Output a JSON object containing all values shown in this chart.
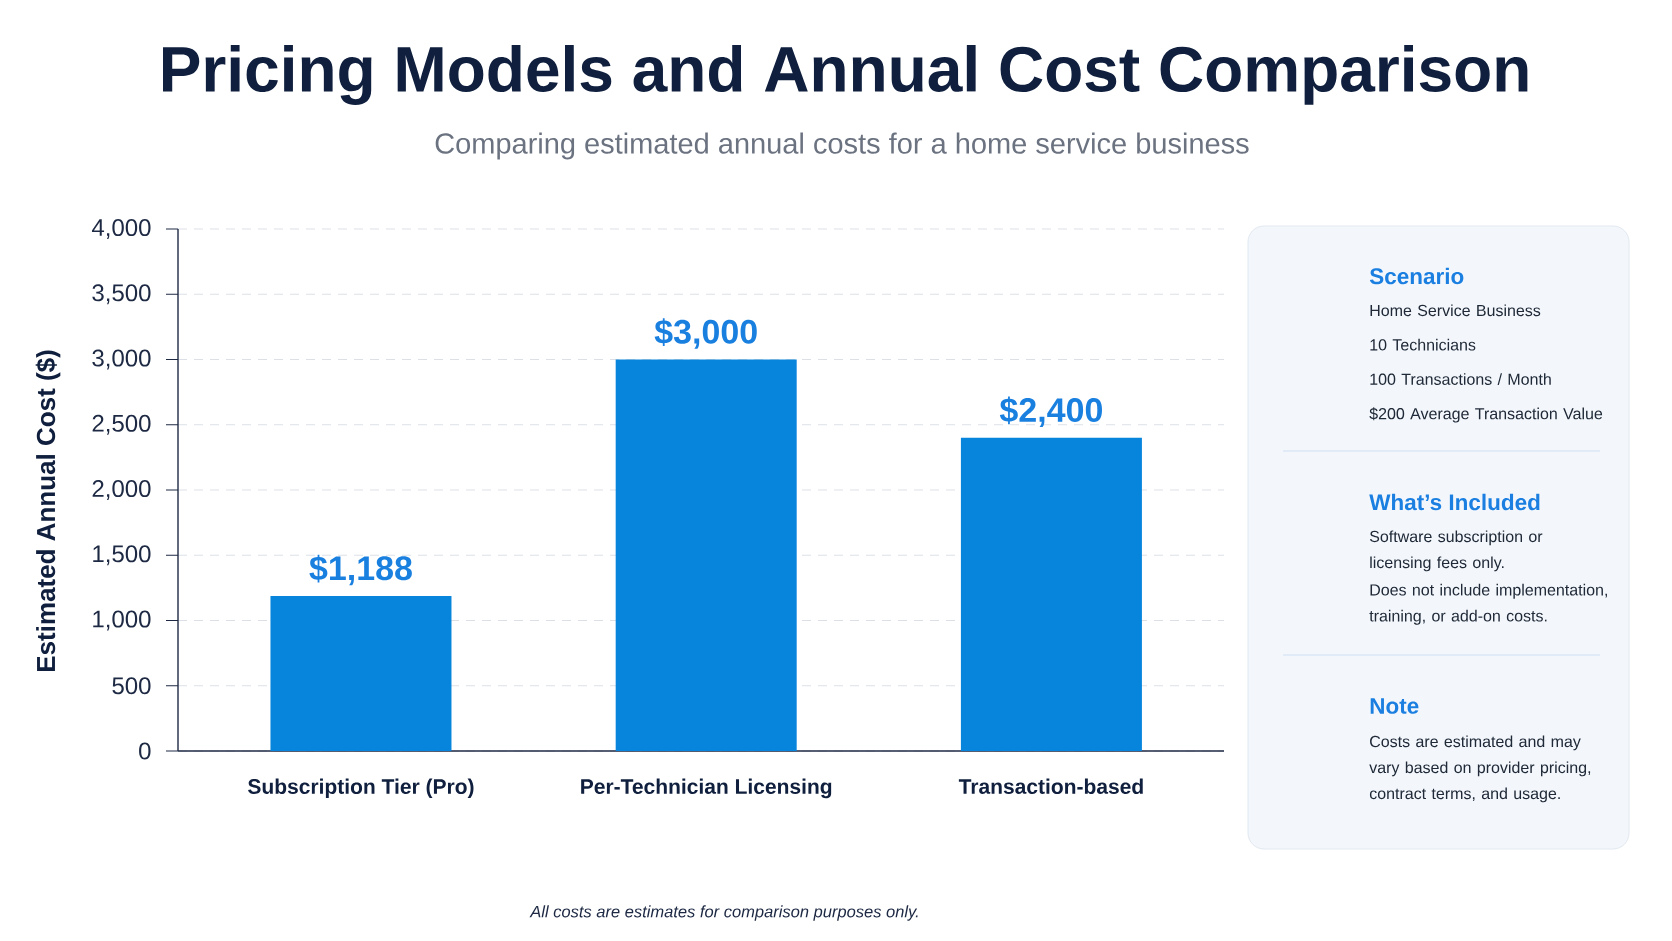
{
  "chart_data": [
    {
      "type": "bar",
      "title": "Pricing Models and Annual Cost Comparison",
      "subtitle": "Comparing estimated annual costs for a home service business",
      "ylabel": "Estimated Annual Cost ($)",
      "categories": [
        "Subscription Tier (Pro)",
        "Per-Technician Licensing",
        "Transaction-based"
      ],
      "values": [
        1188,
        3000,
        2400
      ],
      "value_labels": [
        "$1,188",
        "$3,000",
        "$2,400"
      ],
      "color": "#0784dc",
      "ylim": [
        0,
        4000
      ],
      "yticks": [
        0,
        500,
        {
          "value": 1000,
          "label": "1,000"
        },
        {
          "value": 1500,
          "label": "1,500"
        },
        {
          "value": 2000,
          "label": "2,000"
        },
        {
          "value": 2500,
          "label": "2,500"
        },
        {
          "value": 3000,
          "label": "3,000"
        },
        {
          "value": 3500,
          "label": "3,500"
        },
        {
          "value": 4000,
          "label": "4,000"
        }
      ],
      "grid": "y",
      "annotations": [
        "All costs are estimates for comparison purposes only."
      ]
    },
    {
      "type": "other",
      "title": "Scenario",
      "annotations": [
        "Home Service Business",
        "10 Technicians",
        "100 Transactions / Month",
        "$200 Average Transaction Value"
      ]
    },
    {
      "type": "other",
      "title": "What’s Included",
      "annotations": [
        "Software subscription or licensing fees only.",
        "Does not include implementation, training, or add-on costs."
      ]
    },
    {
      "type": "other",
      "title": "Note",
      "annotations": [
        "Costs are estimated and may vary based on provider pricing, contract terms, and usage."
      ]
    }
  ]
}
